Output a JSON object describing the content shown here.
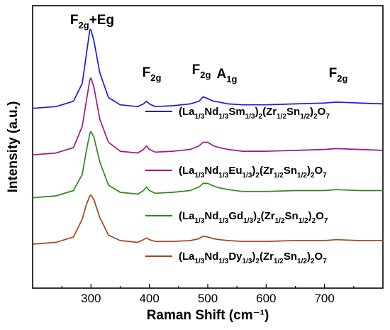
{
  "chart_data": {
    "type": "line",
    "xlabel": "Raman Shift (cm⁻¹)",
    "ylabel": "Intensity (a.u.)",
    "xlim": [
      200,
      800
    ],
    "xticks": [
      300,
      400,
      500,
      600,
      700
    ],
    "y_ticks_shown": false,
    "grid": false,
    "legend_placement": "inline, right of each curve",
    "peak_labels": [
      {
        "x": 300,
        "text": "F2g+Eg"
      },
      {
        "x": 395,
        "text": "F2g"
      },
      {
        "x": 492,
        "text": "F2g"
      },
      {
        "x": 522,
        "text": "A1g"
      },
      {
        "x": 715,
        "text": "F2g"
      }
    ],
    "series": [
      {
        "name": "(La1/3Nd1/3Sm1/3)2(Zr1/2Sn1/2)2O7",
        "color": "#1a1ae6",
        "x": [
          200,
          240,
          270,
          285,
          292,
          298,
          300,
          305,
          315,
          330,
          350,
          380,
          390,
          395,
          400,
          410,
          440,
          470,
          485,
          492,
          500,
          510,
          520,
          535,
          560,
          600,
          650,
          700,
          720,
          760,
          800
        ],
        "y": [
          0.56,
          0.57,
          0.6,
          0.7,
          0.86,
          1.0,
          1.0,
          0.94,
          0.76,
          0.62,
          0.58,
          0.57,
          0.585,
          0.6,
          0.585,
          0.57,
          0.575,
          0.585,
          0.6,
          0.625,
          0.615,
          0.6,
          0.595,
          0.585,
          0.58,
          0.58,
          0.585,
          0.59,
          0.595,
          0.59,
          0.585
        ]
      },
      {
        "name": "(La1/3Nd1/3Eu1/3)2(Zr1/2Sn1/2)2O7",
        "color": "#a0158e",
        "x": [
          200,
          240,
          270,
          285,
          292,
          298,
          300,
          305,
          315,
          330,
          350,
          380,
          390,
          395,
          400,
          410,
          440,
          470,
          485,
          492,
          500,
          510,
          520,
          535,
          560,
          600,
          650,
          700,
          720,
          760,
          800
        ],
        "y": [
          0.3,
          0.31,
          0.34,
          0.46,
          0.6,
          0.72,
          0.73,
          0.68,
          0.5,
          0.37,
          0.32,
          0.31,
          0.33,
          0.35,
          0.33,
          0.315,
          0.32,
          0.33,
          0.35,
          0.37,
          0.37,
          0.35,
          0.34,
          0.33,
          0.32,
          0.32,
          0.325,
          0.33,
          0.335,
          0.33,
          0.325
        ]
      },
      {
        "name": "(La1/3Nd1/3Gd1/3)2(Zr1/2Sn1/2)2O7",
        "color": "#2f8a17",
        "x": [
          200,
          240,
          270,
          285,
          292,
          298,
          300,
          305,
          315,
          330,
          350,
          380,
          390,
          395,
          400,
          410,
          440,
          470,
          485,
          492,
          500,
          510,
          520,
          535,
          560,
          600,
          650,
          700,
          720,
          760,
          800
        ],
        "y": [
          0.06,
          0.07,
          0.1,
          0.19,
          0.32,
          0.42,
          0.43,
          0.4,
          0.26,
          0.13,
          0.09,
          0.08,
          0.1,
          0.12,
          0.1,
          0.085,
          0.09,
          0.1,
          0.12,
          0.14,
          0.14,
          0.125,
          0.115,
          0.105,
          0.095,
          0.095,
          0.1,
          0.1,
          0.105,
          0.1,
          0.1
        ]
      },
      {
        "name": "(La1/3Nd1/3Dy1/3)2(Zr1/2Sn1/2)2O7",
        "color": "#a8441c",
        "x": [
          200,
          240,
          270,
          285,
          292,
          298,
          300,
          305,
          315,
          330,
          350,
          380,
          390,
          395,
          400,
          410,
          440,
          470,
          485,
          492,
          500,
          510,
          520,
          535,
          560,
          600,
          650,
          700,
          720,
          760,
          800
        ],
        "y": [
          -0.2,
          -0.19,
          -0.16,
          -0.06,
          0.02,
          0.07,
          0.075,
          0.05,
          -0.05,
          -0.15,
          -0.18,
          -0.19,
          -0.175,
          -0.165,
          -0.175,
          -0.185,
          -0.185,
          -0.18,
          -0.17,
          -0.155,
          -0.16,
          -0.17,
          -0.175,
          -0.18,
          -0.185,
          -0.185,
          -0.18,
          -0.18,
          -0.175,
          -0.18,
          -0.18
        ]
      }
    ]
  }
}
